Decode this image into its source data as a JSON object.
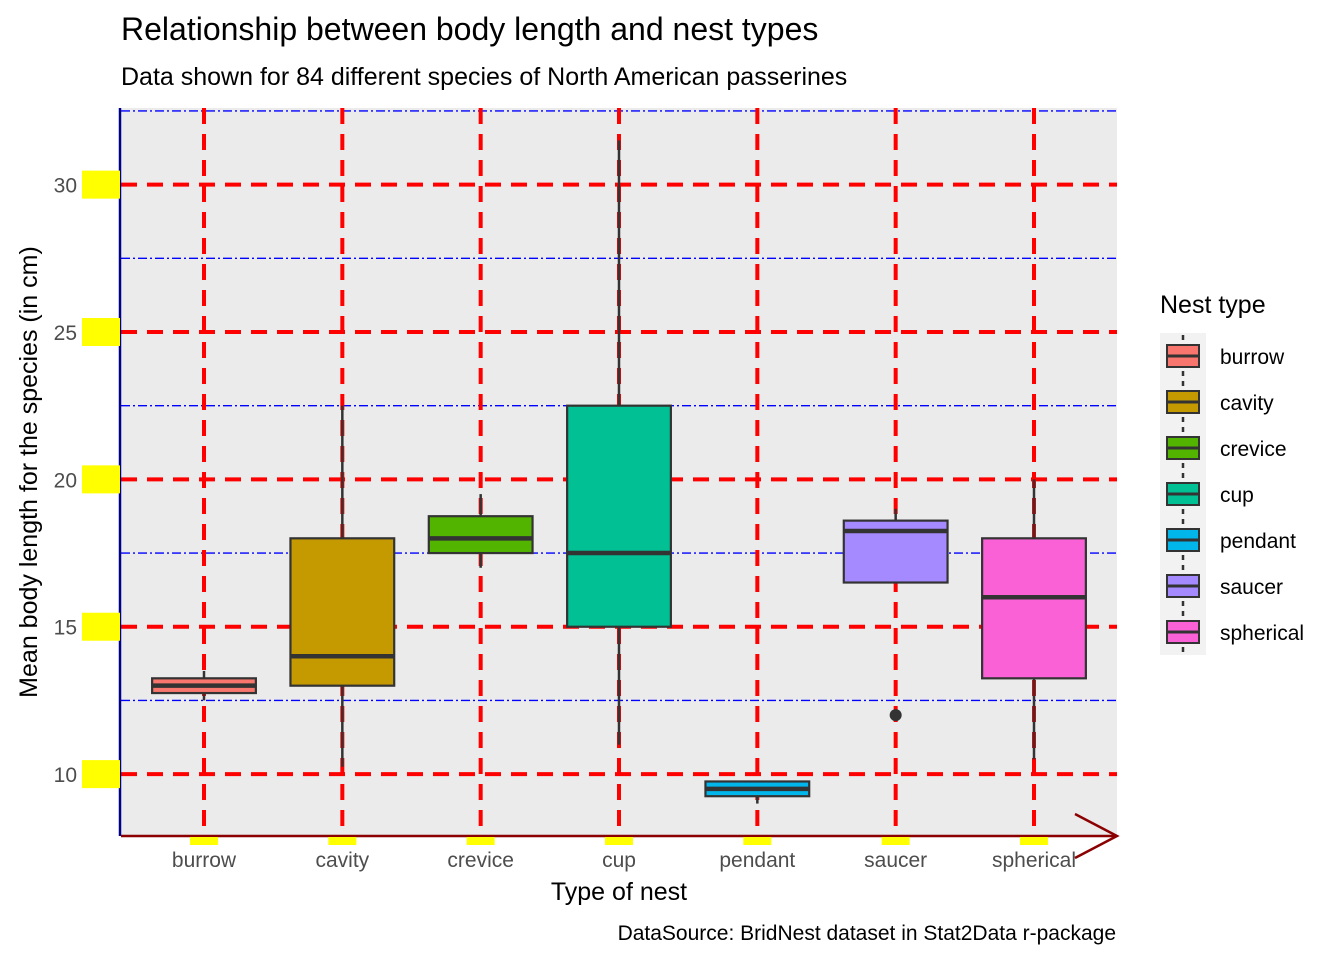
{
  "chart_data": {
    "type": "box",
    "title": "Relationship between body length and nest types",
    "subtitle": "Data shown for 84 different species of North American passerines",
    "caption": "DataSource: BridNest dataset in Stat2Data r-package",
    "xlabel": "Type of nest",
    "ylabel": "Mean body length for the species (in cm)",
    "ylim": [
      7.9,
      32.6
    ],
    "y_ticks": [
      10,
      15,
      20,
      25,
      30
    ],
    "y_minor_gridlines": [
      12.5,
      17.5,
      22.5,
      27.5,
      32.5
    ],
    "grid": true,
    "legend": {
      "title": "Nest type",
      "position": "right"
    },
    "categories": [
      "burrow",
      "cavity",
      "crevice",
      "cup",
      "pendant",
      "saucer",
      "spherical"
    ],
    "boxes": [
      {
        "name": "burrow",
        "color": "#F8766D",
        "whisker_low": 12.5,
        "q1": 12.75,
        "median": 13.0,
        "q3": 13.25,
        "whisker_high": 13.5,
        "outliers": []
      },
      {
        "name": "cavity",
        "color": "#C49A00",
        "whisker_low": 10.25,
        "q1": 13.0,
        "median": 14.0,
        "q3": 18.0,
        "whisker_high": 22.5,
        "outliers": []
      },
      {
        "name": "crevice",
        "color": "#53B400",
        "whisker_low": 17.0,
        "q1": 17.5,
        "median": 18.0,
        "q3": 18.75,
        "whisker_high": 19.5,
        "outliers": []
      },
      {
        "name": "cup",
        "color": "#00C094",
        "whisker_low": 11.0,
        "q1": 15.0,
        "median": 17.5,
        "q3": 22.5,
        "whisker_high": 31.5,
        "outliers": []
      },
      {
        "name": "pendant",
        "color": "#00B6EB",
        "whisker_low": 9.0,
        "q1": 9.25,
        "median": 9.5,
        "q3": 9.75,
        "whisker_high": 9.75,
        "outliers": []
      },
      {
        "name": "saucer",
        "color": "#A58AFF",
        "whisker_low": 16.5,
        "q1": 16.5,
        "median": 18.25,
        "q3": 18.6,
        "whisker_high": 19.0,
        "outliers": [
          12.0
        ]
      },
      {
        "name": "spherical",
        "color": "#FB61D7",
        "whisker_low": 10.5,
        "q1": 13.25,
        "median": 16.0,
        "q3": 18.0,
        "whisker_high": 20.0,
        "outliers": []
      }
    ],
    "colors": {
      "panel_background": "#EBEBEB",
      "major_grid": "#FF0000",
      "minor_grid": "#0000FF",
      "y_axis_line": "#00008B",
      "x_axis_line": "#8B0000",
      "tick_marks": "#FFFF00",
      "box_outline": "#333333"
    }
  }
}
